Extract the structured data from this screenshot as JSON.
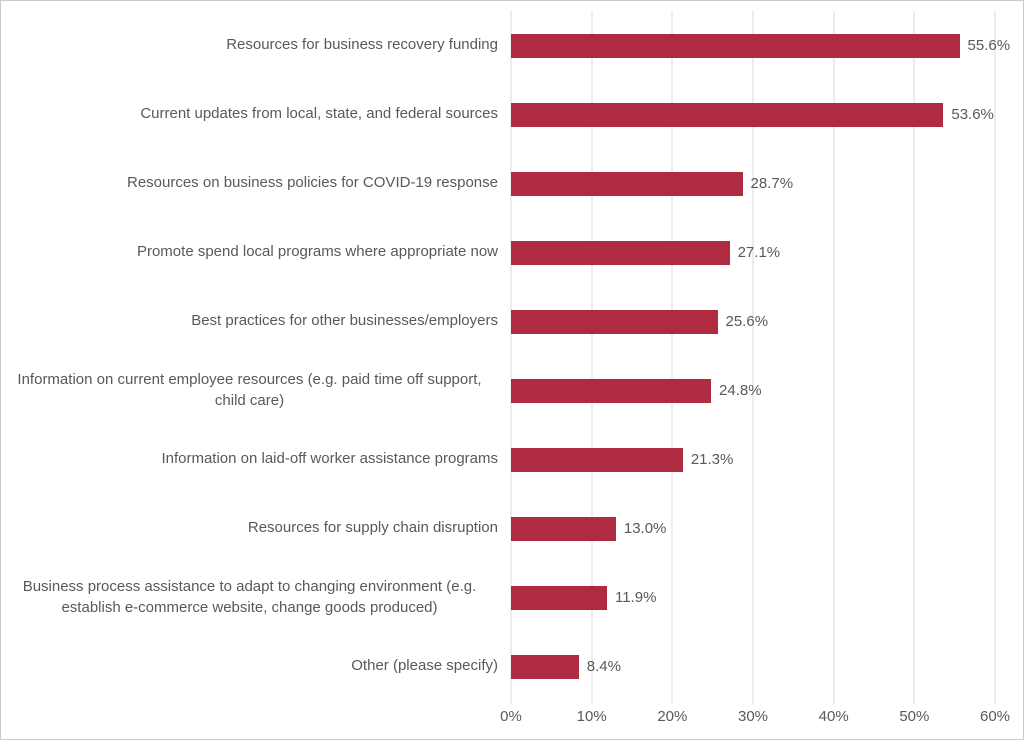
{
  "chart_data": {
    "type": "bar",
    "orientation": "horizontal",
    "title": "",
    "xlabel": "",
    "ylabel": "",
    "categories": [
      "Resources for business recovery funding",
      "Current updates from local, state, and federal sources",
      "Resources on business policies for COVID-19 response",
      "Promote spend local programs where appropriate now",
      "Best practices for other businesses/employers",
      "Information on current employee resources (e.g. paid time off support, child care)",
      "Information on laid-off worker assistance programs",
      "Resources for supply chain disruption",
      "Business process assistance to adapt to changing environment (e.g. establish e-commerce website, change goods produced)",
      "Other (please specify)"
    ],
    "values": [
      55.6,
      53.6,
      28.7,
      27.1,
      25.6,
      24.8,
      21.3,
      13.0,
      11.9,
      8.4
    ],
    "value_labels": [
      "55.6%",
      "53.6%",
      "28.7%",
      "27.1%",
      "25.6%",
      "24.8%",
      "21.3%",
      "13.0%",
      "11.9%",
      "8.4%"
    ],
    "xlim": [
      0,
      60
    ],
    "x_ticks": [
      "0%",
      "10%",
      "20%",
      "30%",
      "40%",
      "50%",
      "60%"
    ],
    "x_tick_values": [
      0,
      10,
      20,
      30,
      40,
      50,
      60
    ],
    "grid": "vertical-on",
    "legend": "none",
    "bar_color": "#AF2B42",
    "text_color": "#595959",
    "gridline_color": "#D9D9D9",
    "background_color": "#FFFFFF"
  }
}
